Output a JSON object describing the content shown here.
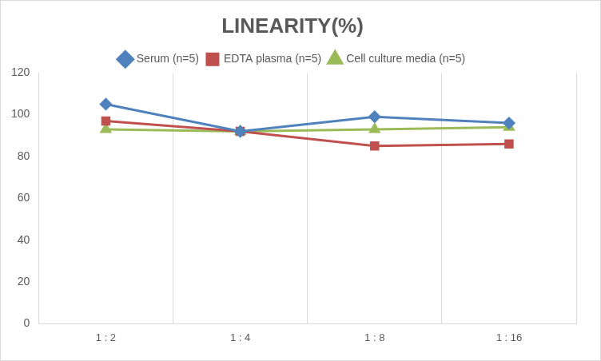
{
  "chart_data": {
    "type": "line",
    "title": "LINEARITY(%)",
    "categories": [
      "1 : 2",
      "1 : 4",
      "1 : 8",
      "1 : 16"
    ],
    "series": [
      {
        "name": "Serum (n=5)",
        "color": "#4f81bd",
        "marker": "diamond",
        "values": [
          105,
          92,
          99,
          96
        ]
      },
      {
        "name": "EDTA plasma (n=5)",
        "color": "#c0504d",
        "marker": "square",
        "values": [
          97,
          92,
          85,
          86
        ]
      },
      {
        "name": "Cell culture media (n=5)",
        "color": "#9bbb59",
        "marker": "triangle",
        "values": [
          93,
          92,
          93,
          94
        ]
      }
    ],
    "ylim": [
      0,
      120
    ],
    "yticks": [
      0,
      20,
      40,
      60,
      80,
      100,
      120
    ],
    "grid": true,
    "legend": "top"
  }
}
